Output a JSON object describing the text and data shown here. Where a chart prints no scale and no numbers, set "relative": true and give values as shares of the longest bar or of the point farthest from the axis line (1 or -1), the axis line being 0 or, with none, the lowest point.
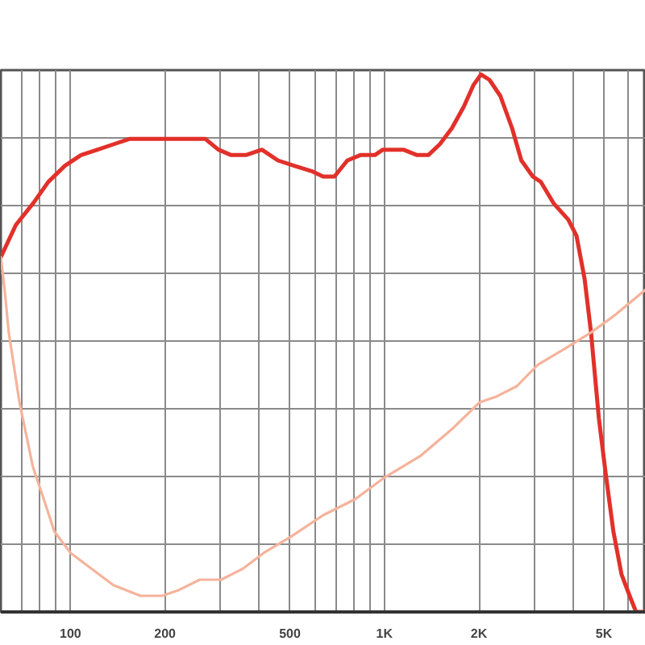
{
  "chart_data": {
    "type": "line",
    "log": "x",
    "relative": true,
    "grid": true,
    "xlim": [
      60,
      6800
    ],
    "xticks": [
      {
        "value": 70,
        "label": null
      },
      {
        "value": 80,
        "label": null
      },
      {
        "value": 90,
        "label": null
      },
      100,
      200,
      {
        "value": 300,
        "label": null
      },
      {
        "value": 400,
        "label": null
      },
      500,
      {
        "value": 600,
        "label": null
      },
      {
        "value": 700,
        "label": null
      },
      {
        "value": 800,
        "label": null
      },
      {
        "value": 900,
        "label": null
      },
      {
        "value": 1000,
        "label": "1K"
      },
      {
        "value": 2000,
        "label": "2K"
      },
      {
        "value": 3000,
        "label": null
      },
      {
        "value": 4000,
        "label": null
      },
      {
        "value": 5000,
        "label": "5K"
      },
      {
        "value": 6000,
        "label": null
      }
    ],
    "series": [
      {
        "color": "#e2302a",
        "x": [
          60,
          67,
          76,
          85,
          96,
          108,
          122,
          137,
          154,
          174,
          196,
          220,
          239,
          254,
          269,
          296,
          325,
          362,
          407,
          458,
          516,
          587,
          638,
          693,
          762,
          838,
          932,
          988,
          1060,
          1150,
          1270,
          1380,
          1500,
          1640,
          1790,
          1920,
          2030,
          2160,
          2340,
          2550,
          2730,
          2970,
          3150,
          3460,
          3850,
          4090,
          4340,
          4550,
          4820,
          5060,
          5360,
          5690,
          6040,
          6330,
          6800
        ],
        "values": [
          0.66,
          0.72,
          0.76,
          0.8,
          0.83,
          0.85,
          0.86,
          0.87,
          0.88,
          0.88,
          0.88,
          0.88,
          0.88,
          0.88,
          0.88,
          0.86,
          0.85,
          0.85,
          0.86,
          0.84,
          0.83,
          0.82,
          0.81,
          0.81,
          0.84,
          0.85,
          0.85,
          0.86,
          0.86,
          0.86,
          0.85,
          0.85,
          0.87,
          0.9,
          0.94,
          0.98,
          1.0,
          0.99,
          0.96,
          0.9,
          0.84,
          0.81,
          0.8,
          0.76,
          0.73,
          0.7,
          0.62,
          0.52,
          0.36,
          0.26,
          0.15,
          0.07,
          0.03,
          0.0,
          0.0
        ]
      },
      {
        "color": "#f5b39b",
        "x": [
          60,
          61.7,
          63.6,
          68.8,
          75.9,
          82.2,
          88.8,
          100,
          117,
          137,
          167,
          196,
          220,
          258,
          302,
          353,
          413,
          504,
          638,
          808,
          1000,
          1300,
          1640,
          2010,
          2260,
          2640,
          3080,
          3760,
          4550,
          5360,
          6800
        ],
        "values": [
          0.66,
          0.6,
          0.52,
          0.39,
          0.27,
          0.21,
          0.15,
          0.11,
          0.08,
          0.05,
          0.03,
          0.03,
          0.04,
          0.06,
          0.06,
          0.08,
          0.11,
          0.14,
          0.18,
          0.21,
          0.25,
          0.29,
          0.34,
          0.39,
          0.4,
          0.42,
          0.46,
          0.49,
          0.52,
          0.55,
          0.6
        ]
      }
    ]
  }
}
